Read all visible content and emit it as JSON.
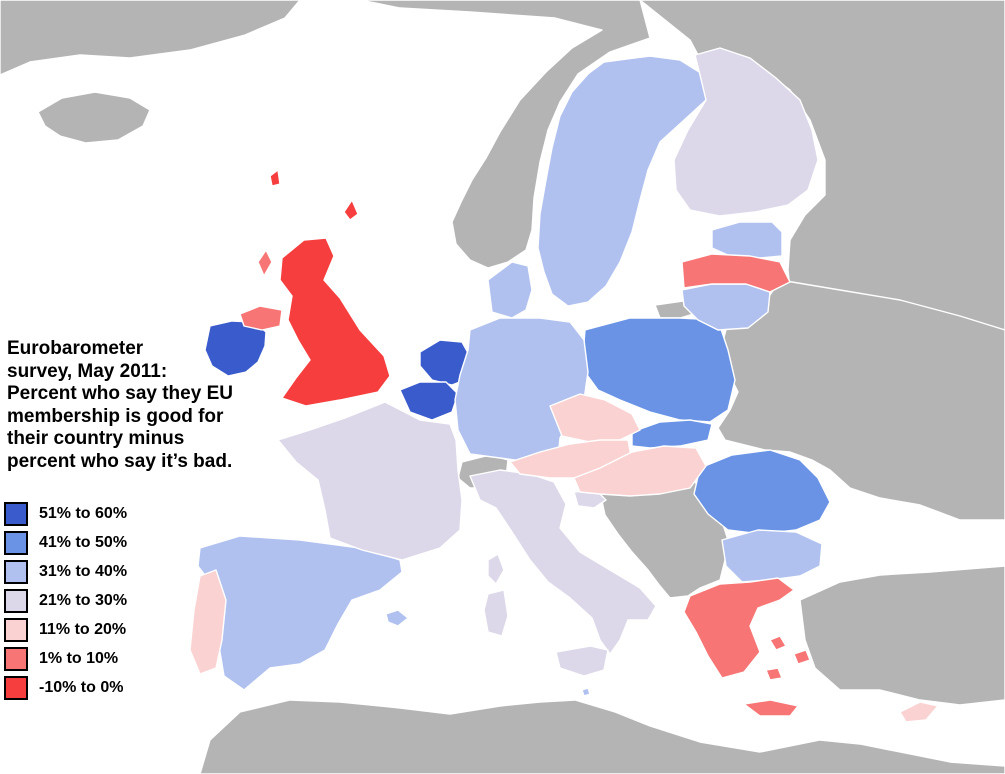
{
  "colors": {
    "sea": "#ffffff",
    "non_member": "#b4b4b4",
    "border": "#ffffff"
  },
  "legend": {
    "title_lines": [
      "Eurobarometer",
      "survey, May 2011:",
      "Percent who say they EU",
      "membership is good for",
      "their country minus",
      "percent who say it’s bad."
    ],
    "items": [
      {
        "label": "51% to 60%",
        "color": "#3a5bcc"
      },
      {
        "label": "41% to 50%",
        "color": "#6a93e6"
      },
      {
        "label": "31% to 40%",
        "color": "#b0c1ef"
      },
      {
        "label": "21% to 30%",
        "color": "#ddd8e9"
      },
      {
        "label": "11% to 20%",
        "color": "#fbd2d2"
      },
      {
        "label": "1% to 10%",
        "color": "#f87575"
      },
      {
        "label": "-10% to 0%",
        "color": "#f73e3e"
      }
    ]
  },
  "countries": [
    {
      "name": "Ireland",
      "band": "51% to 60%"
    },
    {
      "name": "Netherlands",
      "band": "51% to 60%"
    },
    {
      "name": "Belgium",
      "band": "51% to 60%"
    },
    {
      "name": "Luxembourg",
      "band": "51% to 60%"
    },
    {
      "name": "Poland",
      "band": "41% to 50%"
    },
    {
      "name": "Slovakia",
      "band": "41% to 50%"
    },
    {
      "name": "Romania",
      "band": "41% to 50%"
    },
    {
      "name": "Sweden",
      "band": "31% to 40%"
    },
    {
      "name": "Denmark",
      "band": "31% to 40%"
    },
    {
      "name": "Germany",
      "band": "31% to 40%"
    },
    {
      "name": "Estonia",
      "band": "31% to 40%"
    },
    {
      "name": "Lithuania",
      "band": "31% to 40%"
    },
    {
      "name": "Spain",
      "band": "31% to 40%"
    },
    {
      "name": "Bulgaria",
      "band": "31% to 40%"
    },
    {
      "name": "Malta",
      "band": "31% to 40%"
    },
    {
      "name": "Finland",
      "band": "21% to 30%"
    },
    {
      "name": "France",
      "band": "21% to 30%"
    },
    {
      "name": "Italy",
      "band": "21% to 30%"
    },
    {
      "name": "Slovenia",
      "band": "21% to 30%"
    },
    {
      "name": "Czech Republic",
      "band": "11% to 20%"
    },
    {
      "name": "Austria",
      "band": "11% to 20%"
    },
    {
      "name": "Portugal",
      "band": "11% to 20%"
    },
    {
      "name": "Hungary",
      "band": "11% to 20%"
    },
    {
      "name": "Cyprus",
      "band": "11% to 20%"
    },
    {
      "name": "Latvia",
      "band": "1% to 10%"
    },
    {
      "name": "Greece",
      "band": "1% to 10%"
    },
    {
      "name": "United Kingdom",
      "band": "-10% to 0%"
    }
  ]
}
